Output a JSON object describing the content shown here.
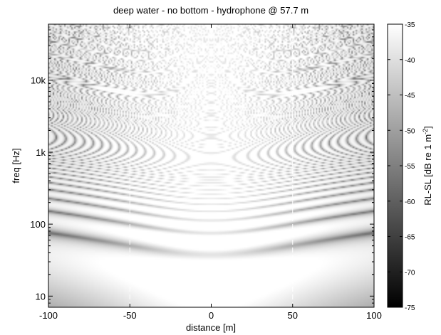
{
  "chart_data": {
    "type": "heatmap",
    "title": "deep water - no bottom - hydrophone @ 57.7 m",
    "xlabel": "distance [m]",
    "ylabel": "freq [Hz]",
    "x": {
      "min": -100,
      "max": 100,
      "scale": "linear",
      "ticks": [
        -100,
        -50,
        0,
        50,
        100
      ],
      "tick_labels": [
        "-100",
        "-50",
        "0",
        "50",
        "100"
      ]
    },
    "y": {
      "min": 7,
      "max": 60000,
      "scale": "log",
      "ticks": [
        10,
        100,
        1000,
        10000
      ],
      "tick_labels": [
        "10",
        "100",
        "1k",
        "10k"
      ]
    },
    "colorbar": {
      "label": "RL-SL [dB re 1 m",
      "label_sup": "-2",
      "label_end": "]",
      "min": -75,
      "max": -35,
      "ticks": [
        -35,
        -40,
        -45,
        -50,
        -55,
        -60,
        -65,
        -70,
        -75
      ],
      "tick_labels": [
        "-35",
        "-40",
        "-45",
        "-50",
        "-55",
        "-60",
        "-65",
        "-70",
        "-75"
      ],
      "colormap": "gray",
      "low_color": "#000000",
      "high_color": "#ffffff"
    },
    "vertical_markers": [
      -50,
      50
    ],
    "marker_color": "#ffffff",
    "grid": false
  }
}
